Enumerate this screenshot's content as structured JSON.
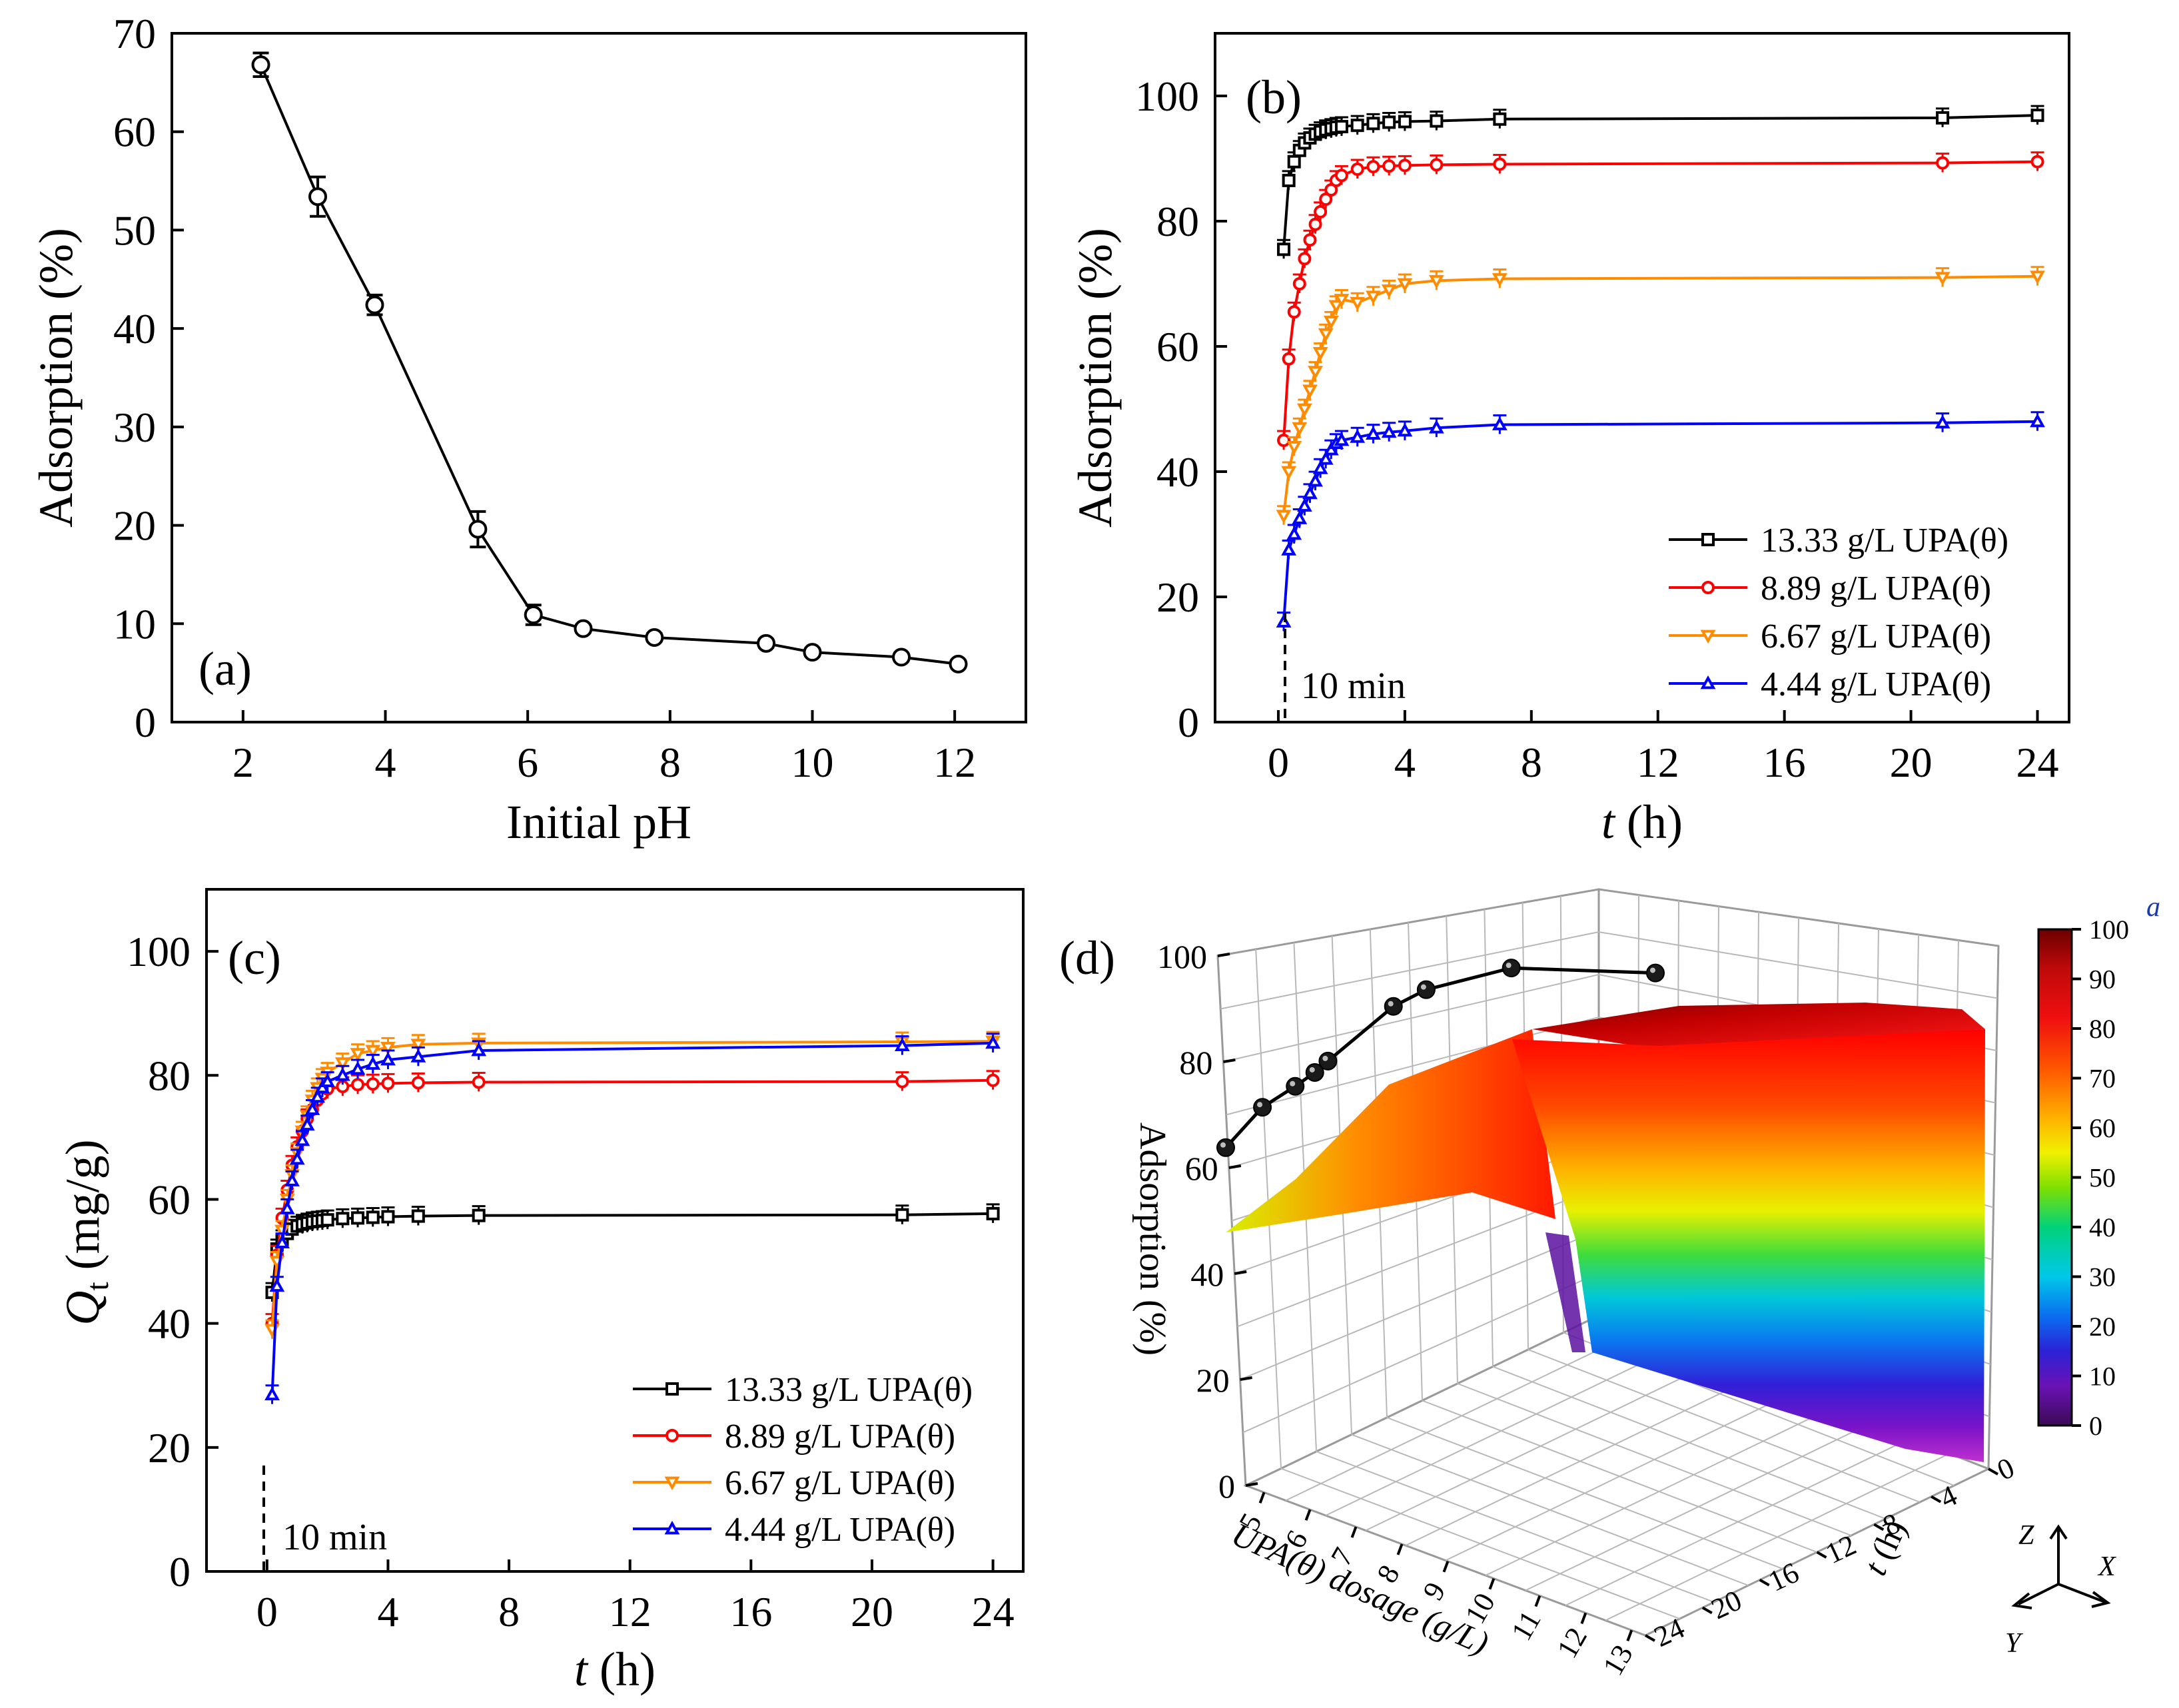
{
  "chart_data": [
    {
      "panel": "(a)",
      "type": "line",
      "xlabel": "Initial pH",
      "ylabel": "Adsorption (%)",
      "xlim": [
        1,
        13
      ],
      "ylim": [
        0,
        70
      ],
      "xticks": [
        "2",
        "4",
        "6",
        "8",
        "10",
        "12"
      ],
      "yticks": [
        "0",
        "10",
        "20",
        "30",
        "40",
        "50",
        "60",
        "70"
      ],
      "series": [
        {
          "marker": "circle",
          "color": "#000000",
          "x": [
            2.25,
            3.05,
            3.85,
            5.3,
            6.08,
            6.78,
            7.78,
            9.35,
            10.0,
            11.25,
            12.05
          ],
          "y": [
            66.8,
            53.4,
            42.4,
            19.6,
            10.9,
            9.5,
            8.6,
            8.0,
            7.1,
            6.6,
            5.9
          ],
          "err": [
            1.2,
            2.0,
            1.0,
            1.8,
            1.0,
            0.4,
            0.4,
            0.4,
            0.4,
            0.4,
            0.4
          ]
        }
      ]
    },
    {
      "panel": "(b)",
      "type": "line",
      "xlabel_italic": "t",
      "xlabel_rest": " (h)",
      "ylabel": "Adsorption (%)",
      "xlim": [
        -2,
        25
      ],
      "ylim": [
        0,
        110
      ],
      "xticks": [
        "0",
        "4",
        "8",
        "12",
        "16",
        "20",
        "24"
      ],
      "yticks": [
        "0",
        "20",
        "40",
        "60",
        "80",
        "100"
      ],
      "annotation": "10 min",
      "legend_position": "bottom-right",
      "x": [
        0.17,
        0.33,
        0.5,
        0.67,
        0.83,
        1.0,
        1.17,
        1.33,
        1.5,
        1.67,
        1.83,
        2.0,
        2.5,
        3.0,
        3.5,
        4.0,
        5.0,
        7.0,
        21.0,
        24.0
      ],
      "series": [
        {
          "name": "13.33 g/L UPA(θ)",
          "color": "#000000",
          "marker": "square",
          "y": [
            75.5,
            86.5,
            89.5,
            91.3,
            92.5,
            93.3,
            93.9,
            94.3,
            94.6,
            94.8,
            95.0,
            95.1,
            95.3,
            95.6,
            95.8,
            95.9,
            96.0,
            96.3,
            96.5,
            96.9
          ]
        },
        {
          "name": "8.89   g/L UPA(θ)",
          "color": "#ff0000",
          "marker": "circle",
          "y": [
            45.0,
            58.0,
            65.5,
            70.0,
            74.0,
            77.0,
            79.5,
            81.5,
            83.5,
            85.0,
            86.5,
            87.3,
            88.3,
            88.7,
            88.8,
            88.9,
            89.0,
            89.1,
            89.3,
            89.5
          ]
        },
        {
          "name": "6.67   g/L UPA(θ)",
          "color": "#ff8c00",
          "marker": "triangle-down",
          "y": [
            33.0,
            40.0,
            44.0,
            47.0,
            50.0,
            53.0,
            56.0,
            59.0,
            62.0,
            64.0,
            66.5,
            67.5,
            67.0,
            68.0,
            69.0,
            70.0,
            70.5,
            70.8,
            71.0,
            71.2
          ]
        },
        {
          "name": "4.44   g/L UPA(θ)",
          "color": "#0000ff",
          "marker": "triangle-up",
          "y": [
            16.0,
            27.5,
            30.0,
            32.5,
            34.5,
            36.5,
            38.5,
            40.5,
            42.0,
            43.5,
            44.5,
            45.0,
            45.5,
            46.0,
            46.3,
            46.5,
            47.0,
            47.5,
            47.8,
            48.0
          ]
        }
      ]
    },
    {
      "panel": "(c)",
      "type": "line",
      "xlabel_italic": "t",
      "xlabel_rest": " (h)",
      "ylabel_italic": "Q",
      "ylabel_sub": "t",
      "ylabel_rest": " (mg/g)",
      "xlim": [
        -2,
        25
      ],
      "ylim": [
        0,
        110
      ],
      "xticks": [
        "0",
        "4",
        "8",
        "12",
        "16",
        "20",
        "24"
      ],
      "yticks": [
        "0",
        "20",
        "40",
        "60",
        "80",
        "100"
      ],
      "annotation": "10 min",
      "legend_position": "bottom-right",
      "x": [
        0.17,
        0.33,
        0.5,
        0.67,
        0.83,
        1.0,
        1.17,
        1.33,
        1.5,
        1.67,
        1.83,
        2.0,
        2.5,
        3.0,
        3.5,
        4.0,
        5.0,
        7.0,
        21.0,
        24.0
      ],
      "series": [
        {
          "name": "13.33 g/L UPA(θ)",
          "color": "#000000",
          "marker": "square",
          "y": [
            45.0,
            52.0,
            53.5,
            54.5,
            55.2,
            55.7,
            56.0,
            56.2,
            56.4,
            56.5,
            56.6,
            56.7,
            56.9,
            57.0,
            57.1,
            57.2,
            57.3,
            57.4,
            57.5,
            57.7
          ]
        },
        {
          "name": "8.89   g/L UPA(θ)",
          "color": "#ff0000",
          "marker": "circle",
          "y": [
            40.0,
            51.0,
            57.0,
            61.5,
            65.5,
            68.5,
            71.0,
            73.0,
            74.5,
            76.0,
            77.0,
            77.8,
            78.2,
            78.5,
            78.6,
            78.7,
            78.8,
            78.9,
            79.0,
            79.2
          ]
        },
        {
          "name": "6.67   g/L UPA(θ)",
          "color": "#ff8c00",
          "marker": "triangle-down",
          "y": [
            39.0,
            50.0,
            55.0,
            60.0,
            64.0,
            67.5,
            71.0,
            73.5,
            76.0,
            78.0,
            79.5,
            80.5,
            82.0,
            83.5,
            84.0,
            84.5,
            85.0,
            85.2,
            85.4,
            85.5
          ]
        },
        {
          "name": "4.44   g/L UPA(θ)",
          "color": "#0000ff",
          "marker": "triangle-up",
          "y": [
            28.5,
            46.0,
            53.0,
            58.5,
            63.0,
            66.5,
            69.5,
            72.0,
            74.5,
            76.5,
            78.0,
            79.0,
            80.0,
            81.0,
            81.8,
            82.5,
            83.0,
            84.0,
            84.8,
            85.2
          ]
        }
      ]
    },
    {
      "panel": "(d)",
      "type": "surface",
      "zlabel": "Adsorption (%)",
      "xlabel": "UPA(θ) dosage (g/L)",
      "ylabel_italic": "t",
      "ylabel_rest": " (h)",
      "zticks": [
        "0",
        "20",
        "40",
        "60",
        "80",
        "100"
      ],
      "xticks": [
        "5",
        "6",
        "7",
        "8",
        "9",
        "10",
        "11",
        "12",
        "13"
      ],
      "yticks": [
        "0",
        "4",
        "8",
        "12",
        "16",
        "20",
        "24"
      ],
      "colorbar": {
        "label": "a",
        "ticks": [
          "0",
          "10",
          "20",
          "30",
          "40",
          "50",
          "60",
          "70",
          "80",
          "90",
          "100"
        ]
      },
      "axis_triad": [
        "Z",
        "X",
        "Y"
      ],
      "line": {
        "dosage": [
          4.44,
          5.0,
          5.5,
          5.8,
          6.0,
          7.0,
          7.5,
          8.8,
          11.0
        ],
        "adsorption": [
          48.0,
          57.0,
          61.5,
          64.5,
          67.0,
          79.0,
          82.5,
          86.5,
          83.5
        ]
      }
    }
  ]
}
